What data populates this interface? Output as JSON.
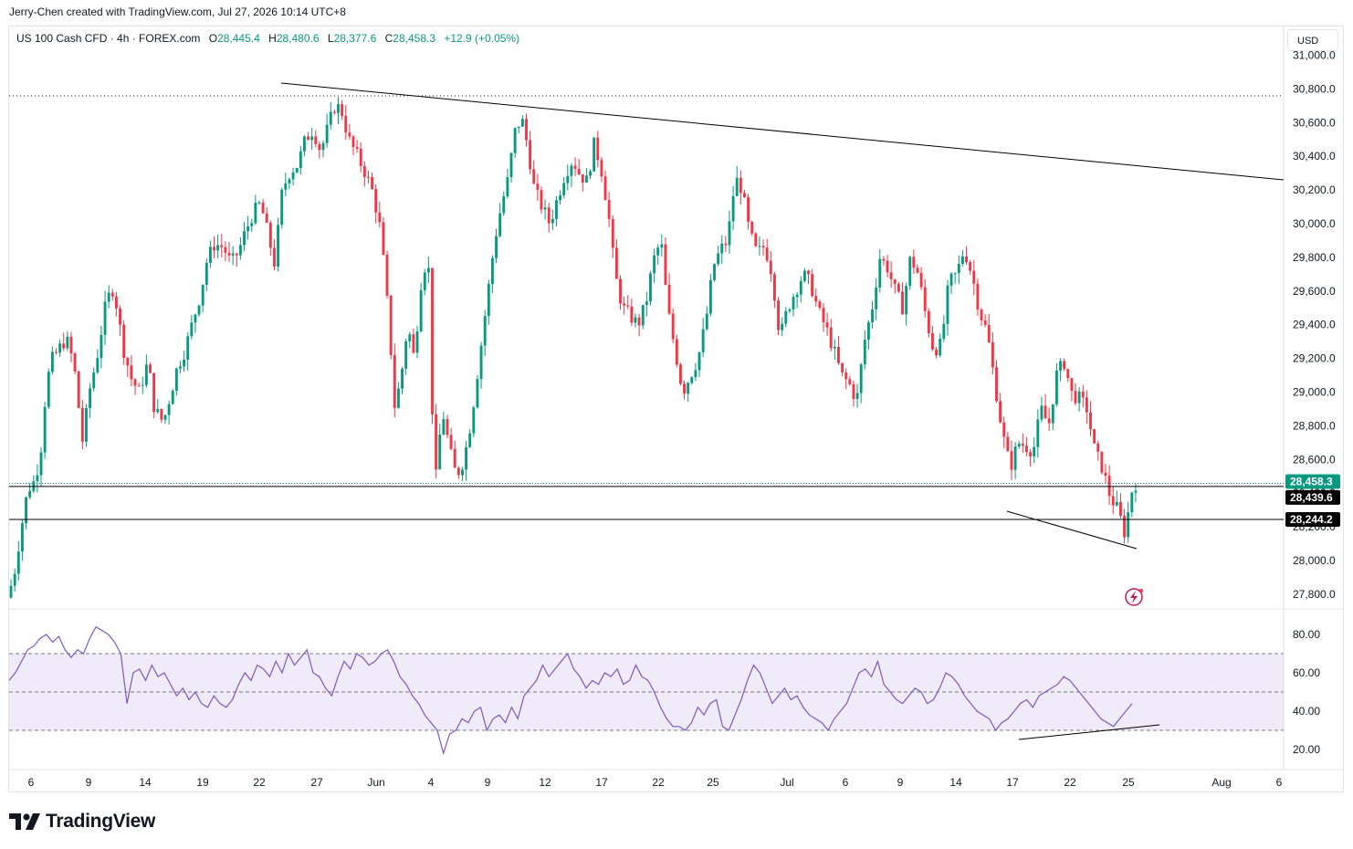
{
  "header": {
    "credit": "Jerry-Chen created with TradingView.com, Jul 27, 2026 10:14 UTC+8"
  },
  "legend": {
    "symbol": "US 100 Cash CFD · 4h · FOREX.com",
    "open_label": "O",
    "open": "28,445.4",
    "high_label": "H",
    "high": "28,480.6",
    "low_label": "L",
    "low": "28,377.6",
    "close_label": "C",
    "close": "28,458.3",
    "change": "+12.9 (+0.05%)"
  },
  "currency": "USD",
  "brand": "TradingView",
  "price_tags": {
    "last": "28,458.3",
    "level1": "28,439.6",
    "level2": "28,244.2"
  },
  "colors": {
    "up": "#089981",
    "down": "#f23645",
    "rsi_line": "#7e57c2",
    "rsi_band": "#7e57c2",
    "level_line": "#000000",
    "last_tag": "#089981",
    "level_tag": "#000000"
  },
  "chart_data": [
    {
      "type": "candlestick",
      "timeframe": "4h",
      "y_ticks": [
        "27,800.0",
        "28,000.0",
        "28,200.0",
        "28,400.0",
        "28,600.0",
        "28,800.0",
        "29,000.0",
        "29,200.0",
        "29,400.0",
        "29,600.0",
        "29,800.0",
        "30,000.0",
        "30,200.0",
        "30,400.0",
        "30,600.0",
        "30,800.0",
        "31,000.0"
      ],
      "y_tick_values": [
        27800,
        28000,
        28200,
        28400,
        28600,
        28800,
        29000,
        29200,
        29400,
        29600,
        29800,
        30000,
        30200,
        30400,
        30600,
        30800,
        31000
      ],
      "ylim": [
        27700,
        31050
      ],
      "x_ticks": [
        "6",
        "9",
        "14",
        "19",
        "22",
        "27",
        "Jun",
        "4",
        "9",
        "12",
        "17",
        "22",
        "25",
        "Jul",
        "6",
        "9",
        "14",
        "17",
        "22",
        "25",
        "Aug",
        "6"
      ],
      "price_path": [
        [
          0,
          27780
        ],
        [
          0.5,
          27900
        ],
        [
          1,
          28150
        ],
        [
          1.6,
          28420
        ],
        [
          2.2,
          28480
        ],
        [
          2.7,
          28700
        ],
        [
          3,
          29000
        ],
        [
          3.4,
          29180
        ],
        [
          4,
          29250
        ],
        [
          4.6,
          29320
        ],
        [
          5.2,
          29170
        ],
        [
          5.9,
          28700
        ],
        [
          6.4,
          29000
        ],
        [
          7.0,
          29200
        ],
        [
          7.7,
          29520
        ],
        [
          8.2,
          29620
        ],
        [
          8.6,
          29500
        ],
        [
          9.0,
          29280
        ],
        [
          9.7,
          29080
        ],
        [
          10.3,
          29000
        ],
        [
          11.0,
          29180
        ],
        [
          11.5,
          28900
        ],
        [
          12.2,
          28820
        ],
        [
          12.8,
          29000
        ],
        [
          13.3,
          29150
        ],
        [
          13.9,
          29250
        ],
        [
          14.5,
          29420
        ],
        [
          15.1,
          29580
        ],
        [
          15.6,
          29780
        ],
        [
          16.2,
          29880
        ],
        [
          16.9,
          29860
        ],
        [
          17.5,
          29760
        ],
        [
          18.1,
          29840
        ],
        [
          18.6,
          29950
        ],
        [
          19.2,
          30060
        ],
        [
          19.8,
          30120
        ],
        [
          20.3,
          29960
        ],
        [
          20.9,
          29760
        ],
        [
          21.5,
          30200
        ],
        [
          22.1,
          30310
        ],
        [
          22.7,
          30350
        ],
        [
          23.3,
          30500
        ],
        [
          23.9,
          30560
        ],
        [
          24.5,
          30430
        ],
        [
          25.1,
          30580
        ],
        [
          25.6,
          30700
        ],
        [
          26.1,
          30680
        ],
        [
          26.7,
          30500
        ],
        [
          27.3,
          30410
        ],
        [
          28.0,
          30300
        ],
        [
          28.6,
          30180
        ],
        [
          29.2,
          29950
        ],
        [
          29.8,
          29450
        ],
        [
          30.3,
          28900
        ],
        [
          30.8,
          29100
        ],
        [
          31.3,
          29400
        ],
        [
          31.8,
          29200
        ],
        [
          32.4,
          29700
        ],
        [
          32.9,
          29800
        ],
        [
          33.4,
          28400
        ],
        [
          34.0,
          28900
        ],
        [
          34.6,
          28650
        ],
        [
          35.1,
          28500
        ],
        [
          35.7,
          28600
        ],
        [
          36.3,
          28850
        ],
        [
          36.9,
          29200
        ],
        [
          37.5,
          29550
        ],
        [
          38.1,
          29900
        ],
        [
          38.6,
          30100
        ],
        [
          39.1,
          30250
        ],
        [
          39.7,
          30550
        ],
        [
          40.2,
          30630
        ],
        [
          40.7,
          30450
        ],
        [
          41.2,
          30200
        ],
        [
          41.8,
          30100
        ],
        [
          42.4,
          30000
        ],
        [
          43.0,
          30150
        ],
        [
          43.6,
          30300
        ],
        [
          44.2,
          30380
        ],
        [
          44.7,
          30300
        ],
        [
          45.3,
          30250
        ],
        [
          45.9,
          30480
        ],
        [
          46.5,
          30300
        ],
        [
          47.0,
          30050
        ],
        [
          47.5,
          29700
        ],
        [
          48.1,
          29500
        ],
        [
          48.7,
          29450
        ],
        [
          49.3,
          29400
        ],
        [
          49.9,
          29520
        ],
        [
          50.5,
          29780
        ],
        [
          51.1,
          29900
        ],
        [
          51.6,
          29500
        ],
        [
          52.2,
          29250
        ],
        [
          52.8,
          29000
        ],
        [
          53.4,
          29100
        ],
        [
          54.0,
          29200
        ],
        [
          54.6,
          29420
        ],
        [
          55.2,
          29750
        ],
        [
          55.8,
          29850
        ],
        [
          56.3,
          29900
        ],
        [
          56.9,
          30270
        ],
        [
          57.4,
          30210
        ],
        [
          58.0,
          29950
        ],
        [
          58.6,
          29820
        ],
        [
          59.2,
          29870
        ],
        [
          59.8,
          29700
        ],
        [
          60.4,
          29320
        ],
        [
          61.0,
          29500
        ],
        [
          61.6,
          29600
        ],
        [
          62.2,
          29700
        ],
        [
          62.8,
          29640
        ],
        [
          63.4,
          29480
        ],
        [
          64.0,
          29380
        ],
        [
          64.6,
          29250
        ],
        [
          65.2,
          29100
        ],
        [
          65.8,
          29050
        ],
        [
          66.4,
          28950
        ],
        [
          67.0,
          29300
        ],
        [
          67.6,
          29500
        ],
        [
          68.2,
          29800
        ],
        [
          68.8,
          29740
        ],
        [
          69.4,
          29600
        ],
        [
          70.0,
          29500
        ],
        [
          70.6,
          29800
        ],
        [
          71.2,
          29700
        ],
        [
          71.8,
          29450
        ],
        [
          72.4,
          29250
        ],
        [
          73.0,
          29280
        ],
        [
          73.6,
          29650
        ],
        [
          74.2,
          29700
        ],
        [
          74.8,
          29850
        ],
        [
          75.4,
          29700
        ],
        [
          76.0,
          29480
        ],
        [
          76.6,
          29350
        ],
        [
          77.2,
          29050
        ],
        [
          77.8,
          28750
        ],
        [
          78.4,
          28550
        ],
        [
          79.0,
          28700
        ],
        [
          79.6,
          28680
        ],
        [
          80.2,
          28650
        ],
        [
          80.8,
          28900
        ],
        [
          81.4,
          28800
        ],
        [
          82.0,
          29100
        ],
        [
          82.6,
          29180
        ],
        [
          83.2,
          28990
        ],
        [
          83.8,
          28960
        ],
        [
          84.4,
          28900
        ],
        [
          85.0,
          28650
        ],
        [
          85.6,
          28550
        ],
        [
          86.2,
          28380
        ],
        [
          86.8,
          28300
        ],
        [
          87.4,
          28150
        ],
        [
          87.8,
          28400
        ],
        [
          88.2,
          28458
        ]
      ],
      "levels": [
        28439.6,
        28244.2
      ],
      "last_price": 28458.3
    },
    {
      "type": "line",
      "name": "RSI",
      "y_ticks": [
        "20.00",
        "40.00",
        "60.00",
        "80.00"
      ],
      "y_tick_values": [
        20,
        40,
        60,
        80
      ],
      "ylim": [
        10,
        90
      ],
      "band": [
        30,
        70
      ],
      "midline": 50,
      "values": [
        56,
        60,
        66,
        72,
        74,
        78,
        80,
        76,
        79,
        72,
        68,
        72,
        70,
        78,
        84,
        82,
        80,
        76,
        70,
        44,
        60,
        62,
        56,
        64,
        58,
        60,
        54,
        48,
        52,
        46,
        50,
        44,
        42,
        48,
        44,
        42,
        46,
        54,
        60,
        56,
        64,
        62,
        58,
        66,
        60,
        70,
        64,
        68,
        72,
        60,
        58,
        52,
        48,
        58,
        66,
        62,
        70,
        68,
        64,
        66,
        70,
        72,
        66,
        58,
        54,
        48,
        44,
        38,
        34,
        30,
        18,
        28,
        30,
        36,
        34,
        40,
        42,
        30,
        36,
        38,
        34,
        42,
        36,
        48,
        52,
        56,
        64,
        58,
        62,
        66,
        70,
        62,
        58,
        52,
        56,
        54,
        60,
        58,
        62,
        54,
        56,
        64,
        58,
        56,
        50,
        42,
        36,
        32,
        32,
        30,
        34,
        42,
        38,
        44,
        46,
        32,
        30,
        38,
        46,
        56,
        64,
        60,
        52,
        44,
        48,
        52,
        46,
        48,
        42,
        38,
        36,
        34,
        30,
        36,
        40,
        44,
        52,
        60,
        62,
        58,
        66,
        54,
        50,
        46,
        44,
        48,
        52,
        50,
        44,
        46,
        52,
        60,
        58,
        54,
        48,
        44,
        40,
        38,
        36,
        30,
        34,
        36,
        40,
        44,
        46,
        42,
        48,
        50,
        52,
        54,
        58,
        56,
        52,
        48,
        44,
        40,
        36,
        34,
        32,
        36,
        40,
        44
      ]
    }
  ]
}
